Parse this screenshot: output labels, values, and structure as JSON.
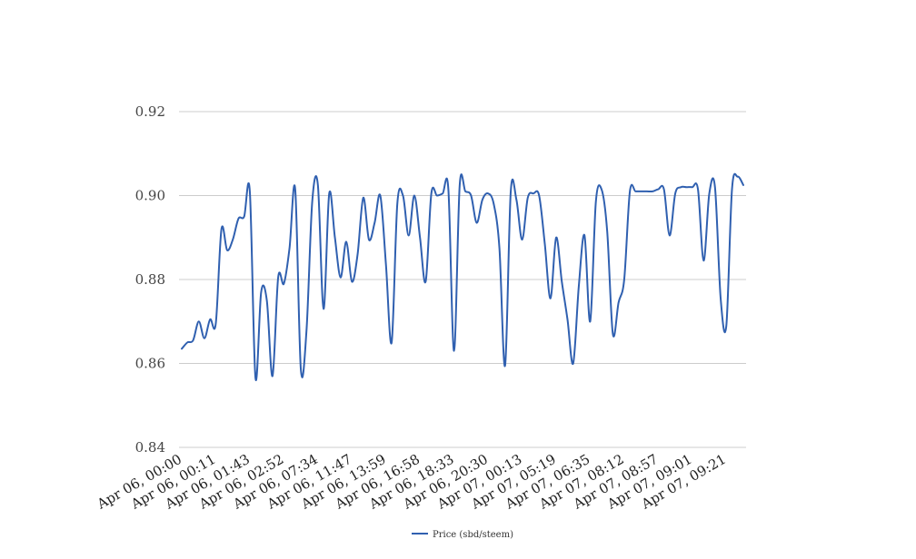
{
  "chart_data": {
    "type": "line",
    "title": "",
    "xlabel": "",
    "ylabel": "",
    "ylim": [
      0.84,
      0.92
    ],
    "yticks": [
      "0.84",
      "0.86",
      "0.88",
      "0.90",
      "0.92"
    ],
    "grid": true,
    "legend_position": "bottom-center",
    "xtick_labels": [
      "Apr 06, 00:00",
      "Apr 06, 00:11",
      "Apr 06, 01:43",
      "Apr 06, 02:52",
      "Apr 06, 07:34",
      "Apr 06, 11:47",
      "Apr 06, 13:59",
      "Apr 06, 16:58",
      "Apr 06, 18:33",
      "Apr 06, 20:30",
      "Apr 07, 00:13",
      "Apr 07, 05:19",
      "Apr 07, 06:35",
      "Apr 07, 08:12",
      "Apr 07, 08:57",
      "Apr 07, 09:01",
      "Apr 07, 09:21"
    ],
    "series": [
      {
        "name": "Price (sbd/steem)",
        "color": "#3060b0",
        "values": [
          0.8635,
          0.865,
          0.8655,
          0.87,
          0.866,
          0.8705,
          0.8695,
          0.892,
          0.887,
          0.8895,
          0.8945,
          0.895,
          0.901,
          0.8565,
          0.877,
          0.875,
          0.857,
          0.8805,
          0.879,
          0.8875,
          0.9015,
          0.8585,
          0.868,
          0.8985,
          0.9025,
          0.873,
          0.9005,
          0.89,
          0.8805,
          0.889,
          0.8795,
          0.886,
          0.8995,
          0.8895,
          0.8935,
          0.9,
          0.8835,
          0.865,
          0.898,
          0.9,
          0.8905,
          0.9,
          0.89,
          0.8795,
          0.9005,
          0.9,
          0.9005,
          0.9015,
          0.863,
          0.9025,
          0.901,
          0.9,
          0.8935,
          0.899,
          0.9005,
          0.898,
          0.8875,
          0.8595,
          0.901,
          0.899,
          0.8895,
          0.8995,
          0.9005,
          0.9,
          0.8885,
          0.8755,
          0.89,
          0.8795,
          0.8705,
          0.86,
          0.8785,
          0.8905,
          0.87,
          0.8985,
          0.9015,
          0.8915,
          0.867,
          0.8745,
          0.88,
          0.901,
          0.901,
          0.901,
          0.901,
          0.901,
          0.9015,
          0.9015,
          0.8905,
          0.9005,
          0.902,
          0.902,
          0.902,
          0.9015,
          0.8845,
          0.9005,
          0.902,
          0.8755,
          0.869,
          0.9015,
          0.9045,
          0.9025
        ]
      }
    ]
  }
}
